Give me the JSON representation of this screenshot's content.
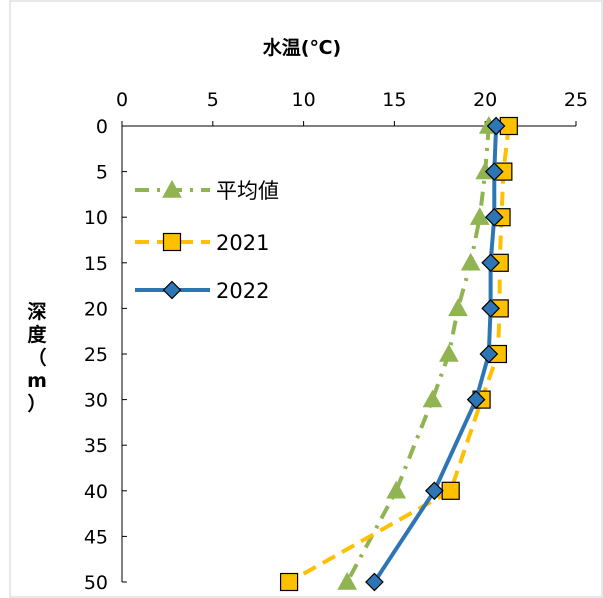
{
  "chart_data": {
    "type": "line",
    "title": "",
    "xlabel": "水温(℃)",
    "ylabel": "深度（m）",
    "x_axis_position": "top",
    "y_axis_inverted": true,
    "xlim": [
      0,
      25
    ],
    "ylim": [
      0,
      50
    ],
    "xticks": [
      "0",
      "5",
      "10",
      "15",
      "20",
      "25"
    ],
    "yticks": [
      "0",
      "5",
      "10",
      "15",
      "20",
      "25",
      "30",
      "35",
      "40",
      "45",
      "50"
    ],
    "grid": false,
    "legend_position": "left",
    "y": [
      0,
      5,
      10,
      15,
      20,
      25,
      30,
      40,
      50
    ],
    "series": [
      {
        "name": "平均値",
        "color": "#8FB451",
        "marker": "triangle",
        "line_style": "dash-dot",
        "values": [
          20.2,
          20.0,
          19.7,
          19.2,
          18.5,
          18.0,
          17.1,
          15.1,
          12.4
        ]
      },
      {
        "name": "2021",
        "color": "#FFC000",
        "marker": "square",
        "line_style": "dashed",
        "values": [
          21.3,
          21.0,
          20.9,
          20.8,
          20.8,
          20.7,
          19.8,
          18.1,
          9.2
        ]
      },
      {
        "name": "2022",
        "color": "#2E75B6",
        "marker": "diamond",
        "line_style": "solid",
        "values": [
          20.6,
          20.5,
          20.5,
          20.3,
          20.3,
          20.2,
          19.5,
          17.2,
          13.9
        ]
      }
    ]
  }
}
